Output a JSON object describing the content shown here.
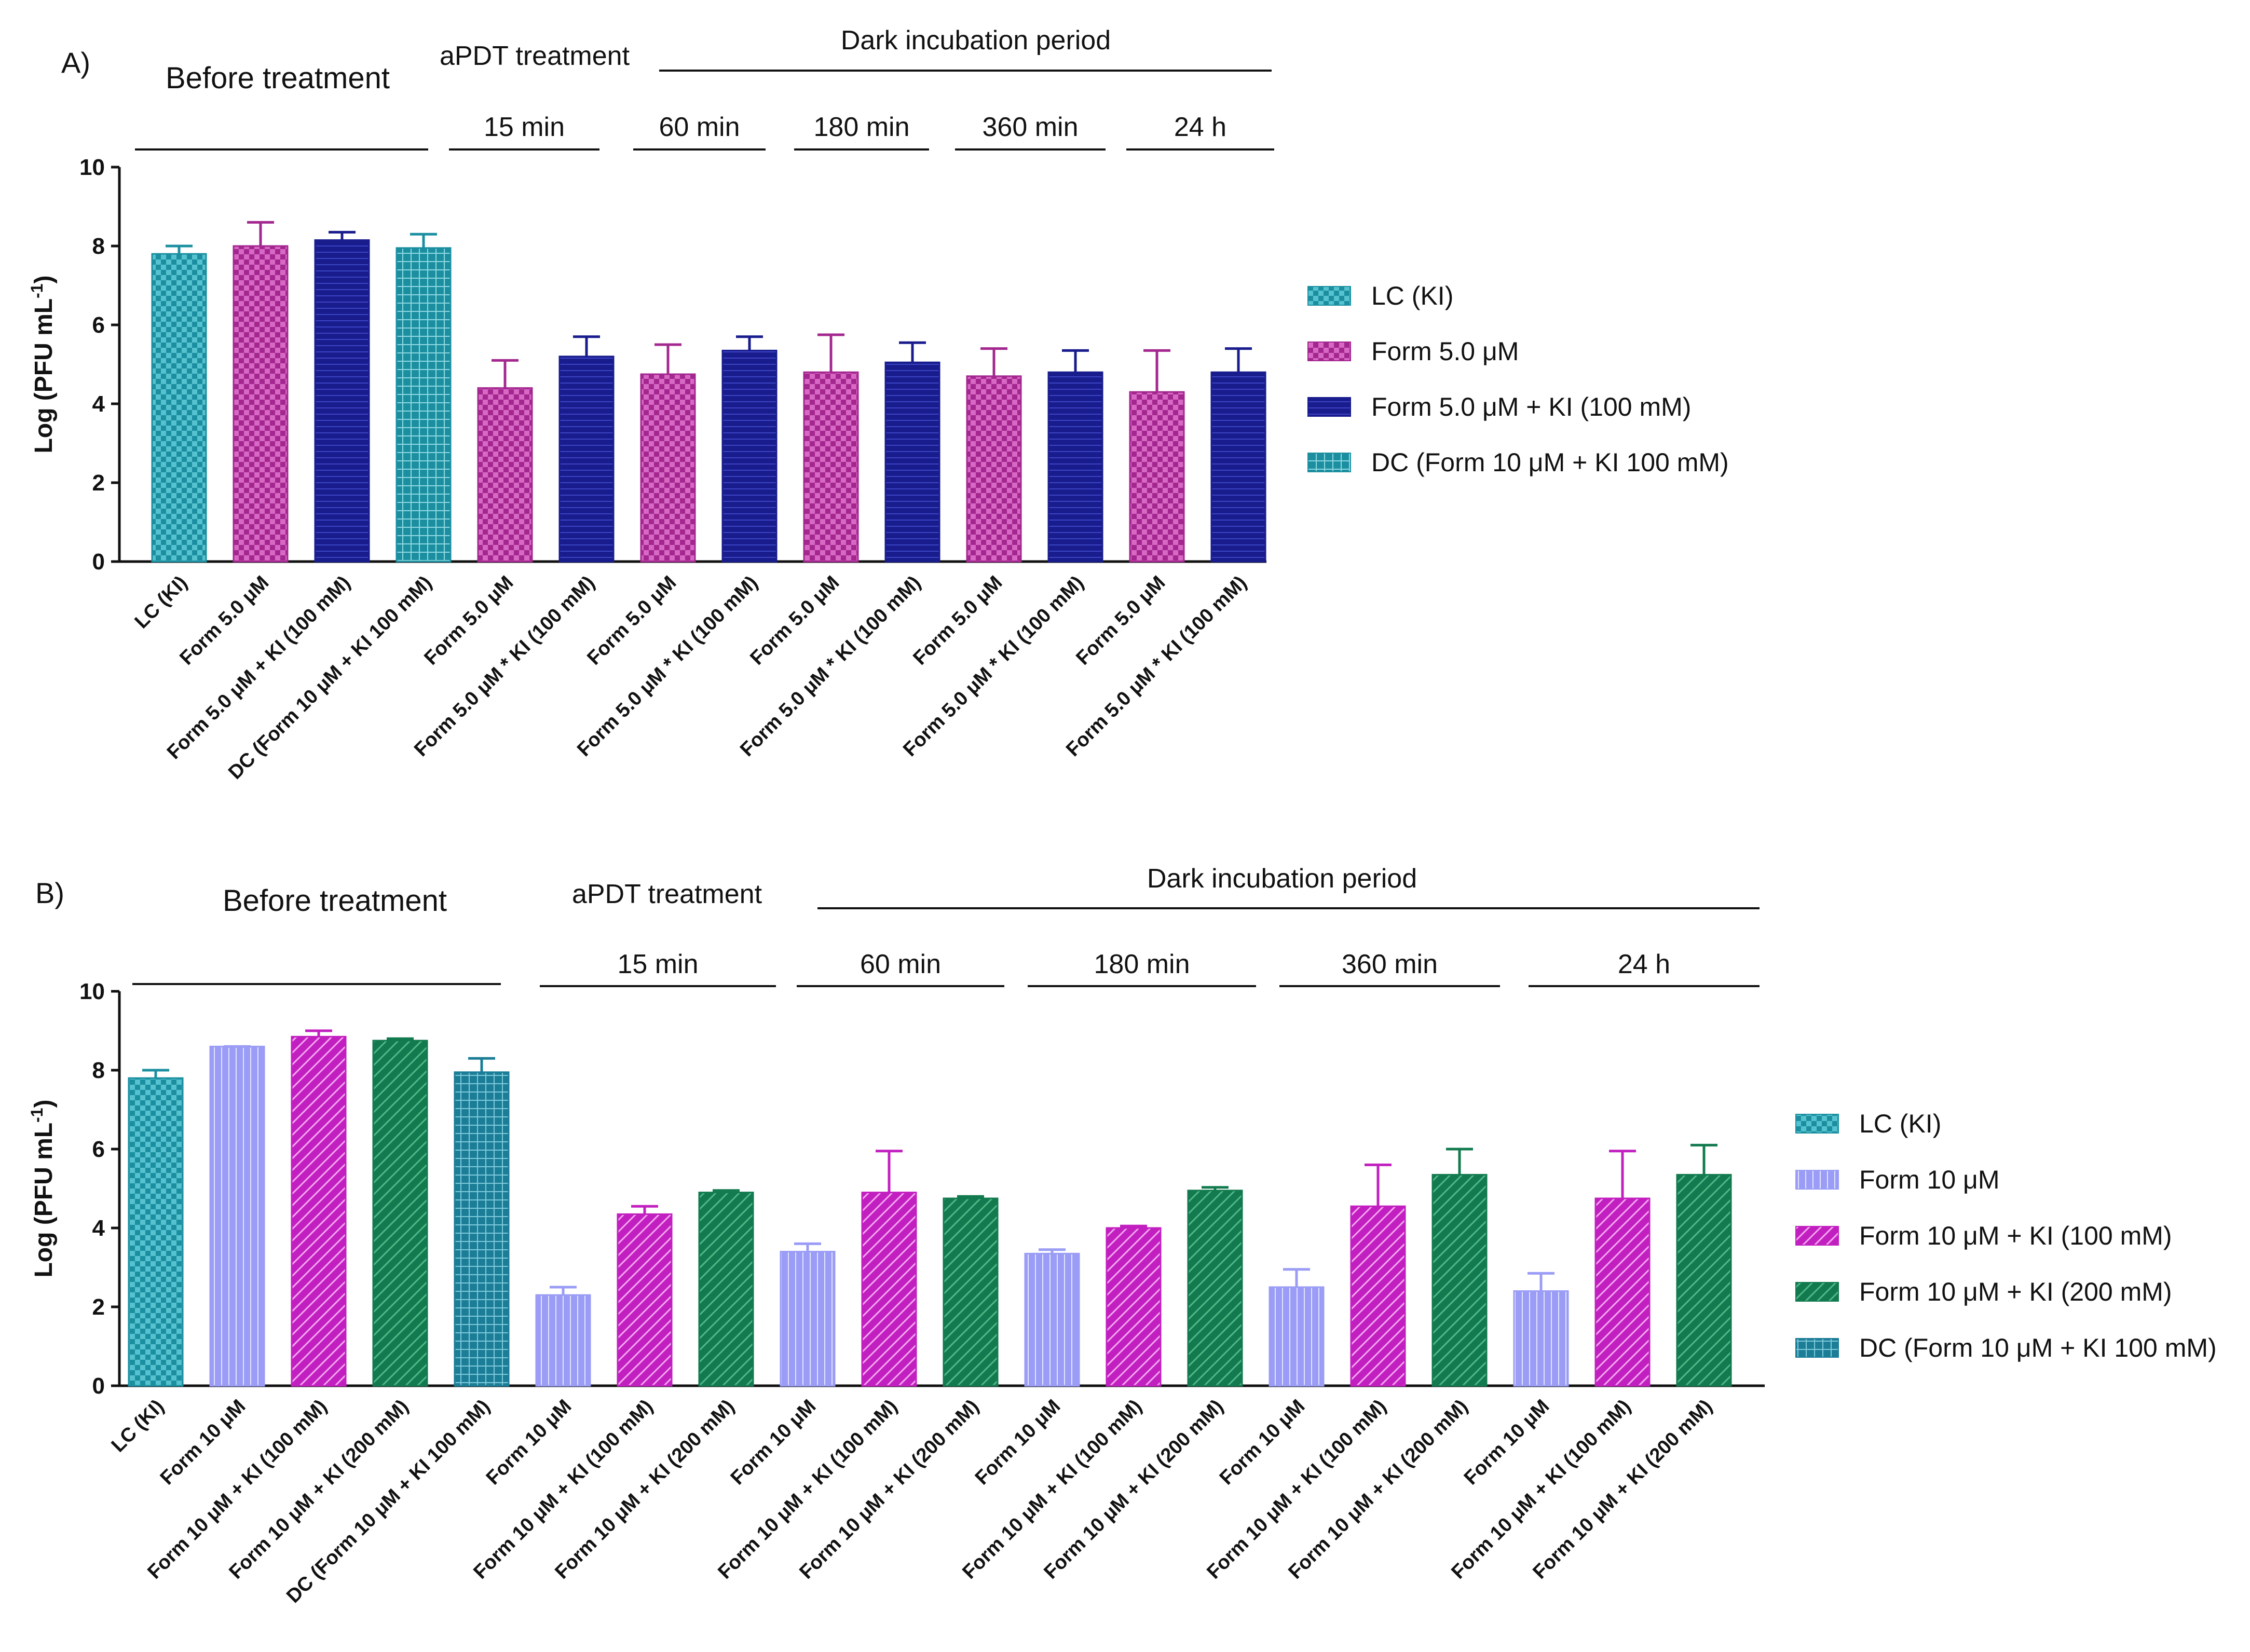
{
  "panels": [
    {
      "panel_label": "A)",
      "headers": {
        "before": "Before treatment",
        "apdt": "aPDT treatment",
        "dark": "Dark incubation period",
        "times": [
          "15 min",
          "60 min",
          "180 min",
          "360 min",
          "24 h"
        ]
      },
      "legend": [
        {
          "label": "LC (KI)",
          "color": "#1b8fa0",
          "pattern": "check"
        },
        {
          "label": "Form 5.0 μM",
          "color": "#a3278f",
          "pattern": "check"
        },
        {
          "label": "Form 5.0 μM + KI (100 mM)",
          "color": "#181c8c",
          "pattern": "hstripe"
        },
        {
          "label": "DC (Form 10 μM + KI 100 mM)",
          "color": "#1b8fa0",
          "pattern": "grid"
        }
      ]
    },
    {
      "panel_label": "B)",
      "headers": {
        "before": "Before treatment",
        "apdt": "aPDT treatment",
        "dark": "Dark incubation period",
        "times": [
          "15 min",
          "60 min",
          "180 min",
          "360 min",
          "24 h"
        ]
      },
      "legend": [
        {
          "label": "LC (KI)",
          "color": "#1b8fa0",
          "pattern": "check"
        },
        {
          "label": "Form 10 μM",
          "color": "#9a9cf5",
          "pattern": "vstripe"
        },
        {
          "label": "Form 10 μM + KI (100 mM)",
          "color": "#c21fc0",
          "pattern": "diag"
        },
        {
          "label": "Form 10 μM + KI (200 mM)",
          "color": "#127a4e",
          "pattern": "diag"
        },
        {
          "label": "DC (Form 10 μM + KI 100 mM)",
          "color": "#1b7d96",
          "pattern": "grid"
        }
      ]
    }
  ],
  "chart_data": [
    {
      "type": "bar",
      "title": "A)",
      "ylabel": "Log (PFU mL-1)",
      "ylim": [
        0,
        10
      ],
      "yticks": [
        0,
        2,
        4,
        6,
        8,
        10
      ],
      "categories": [
        "LC (KI)",
        "Form 5.0 μM",
        "Form 5.0 μM + KI (100 mM)",
        "DC (Form 10 μM + KI 100 mM)",
        "Form 5.0 μM",
        "Form 5.0 μM * KI (100 mM)",
        "Form 5.0 μM",
        "Form 5.0 μM * KI (100 mM)",
        "Form 5.0 μM",
        "Form 5.0 μM * KI (100 mM)",
        "Form 5.0 μM",
        "Form 5.0 μM * KI (100 mM)",
        "Form 5.0 μM",
        "Form 5.0 μM * KI (100 mM)"
      ],
      "values": [
        7.8,
        8.0,
        8.15,
        7.95,
        4.4,
        5.2,
        4.75,
        5.35,
        4.8,
        5.05,
        4.7,
        4.8,
        4.3,
        4.8
      ],
      "errors": [
        0.2,
        0.6,
        0.2,
        0.35,
        0.7,
        0.5,
        0.75,
        0.35,
        0.95,
        0.5,
        0.7,
        0.55,
        1.05,
        0.6
      ],
      "series_index": [
        0,
        1,
        2,
        3,
        1,
        2,
        1,
        2,
        1,
        2,
        1,
        2,
        1,
        2
      ],
      "groups": [
        {
          "label": "Before treatment",
          "bars": [
            0,
            3
          ]
        },
        {
          "label": "15 min",
          "bars": [
            4,
            5
          ]
        },
        {
          "label": "60 min",
          "bars": [
            6,
            7
          ]
        },
        {
          "label": "180 min",
          "bars": [
            8,
            9
          ]
        },
        {
          "label": "360 min",
          "bars": [
            10,
            11
          ]
        },
        {
          "label": "24 h",
          "bars": [
            12,
            13
          ]
        }
      ]
    },
    {
      "type": "bar",
      "title": "B)",
      "ylabel": "Log (PFU mL-1)",
      "ylim": [
        0,
        10
      ],
      "yticks": [
        0,
        2,
        4,
        6,
        8,
        10
      ],
      "categories": [
        "LC (KI)",
        "Form 10 μM",
        "Form 10 μM + KI (100 mM)",
        "Form 10 μM + KI (200 mM)",
        "DC (Form 10 μM + KI 100 mM)",
        "Form 10 μM",
        "Form 10 μM + KI (100 mM)",
        "Form 10 μM + KI (200 mM)",
        "Form 10 μM",
        "Form 10 μM + KI (100 mM)",
        "Form 10 μM + KI (200 mM)",
        "Form 10 μM",
        "Form 10 μM + KI (100 mM)",
        "Form 10 μM + KI (200 mM)",
        "Form 10 μM",
        "Form 10 μM + KI (100 mM)",
        "Form 10 μM + KI (200 mM)",
        "Form 10 μM",
        "Form 10 μM + KI (100 mM)",
        "Form 10 μM + KI (200 mM)"
      ],
      "values": [
        7.8,
        8.6,
        8.85,
        8.75,
        7.95,
        2.3,
        4.35,
        4.9,
        3.4,
        4.9,
        4.75,
        3.35,
        4.0,
        4.95,
        2.5,
        4.55,
        5.35,
        2.4,
        4.75,
        5.35
      ],
      "errors": [
        0.2,
        0.0,
        0.15,
        0.05,
        0.35,
        0.2,
        0.2,
        0.05,
        0.2,
        1.05,
        0.05,
        0.1,
        0.05,
        0.08,
        0.45,
        1.05,
        0.65,
        0.45,
        1.2,
        0.75
      ],
      "series_index": [
        0,
        1,
        2,
        3,
        4,
        1,
        2,
        3,
        1,
        2,
        3,
        1,
        2,
        3,
        1,
        2,
        3,
        1,
        2,
        3
      ],
      "groups": [
        {
          "label": "Before treatment",
          "bars": [
            0,
            4
          ]
        },
        {
          "label": "15 min",
          "bars": [
            5,
            7
          ]
        },
        {
          "label": "60 min",
          "bars": [
            8,
            10
          ]
        },
        {
          "label": "180 min",
          "bars": [
            11,
            13
          ]
        },
        {
          "label": "360 min",
          "bars": [
            14,
            16
          ]
        },
        {
          "label": "24 h",
          "bars": [
            17,
            19
          ]
        }
      ]
    }
  ]
}
